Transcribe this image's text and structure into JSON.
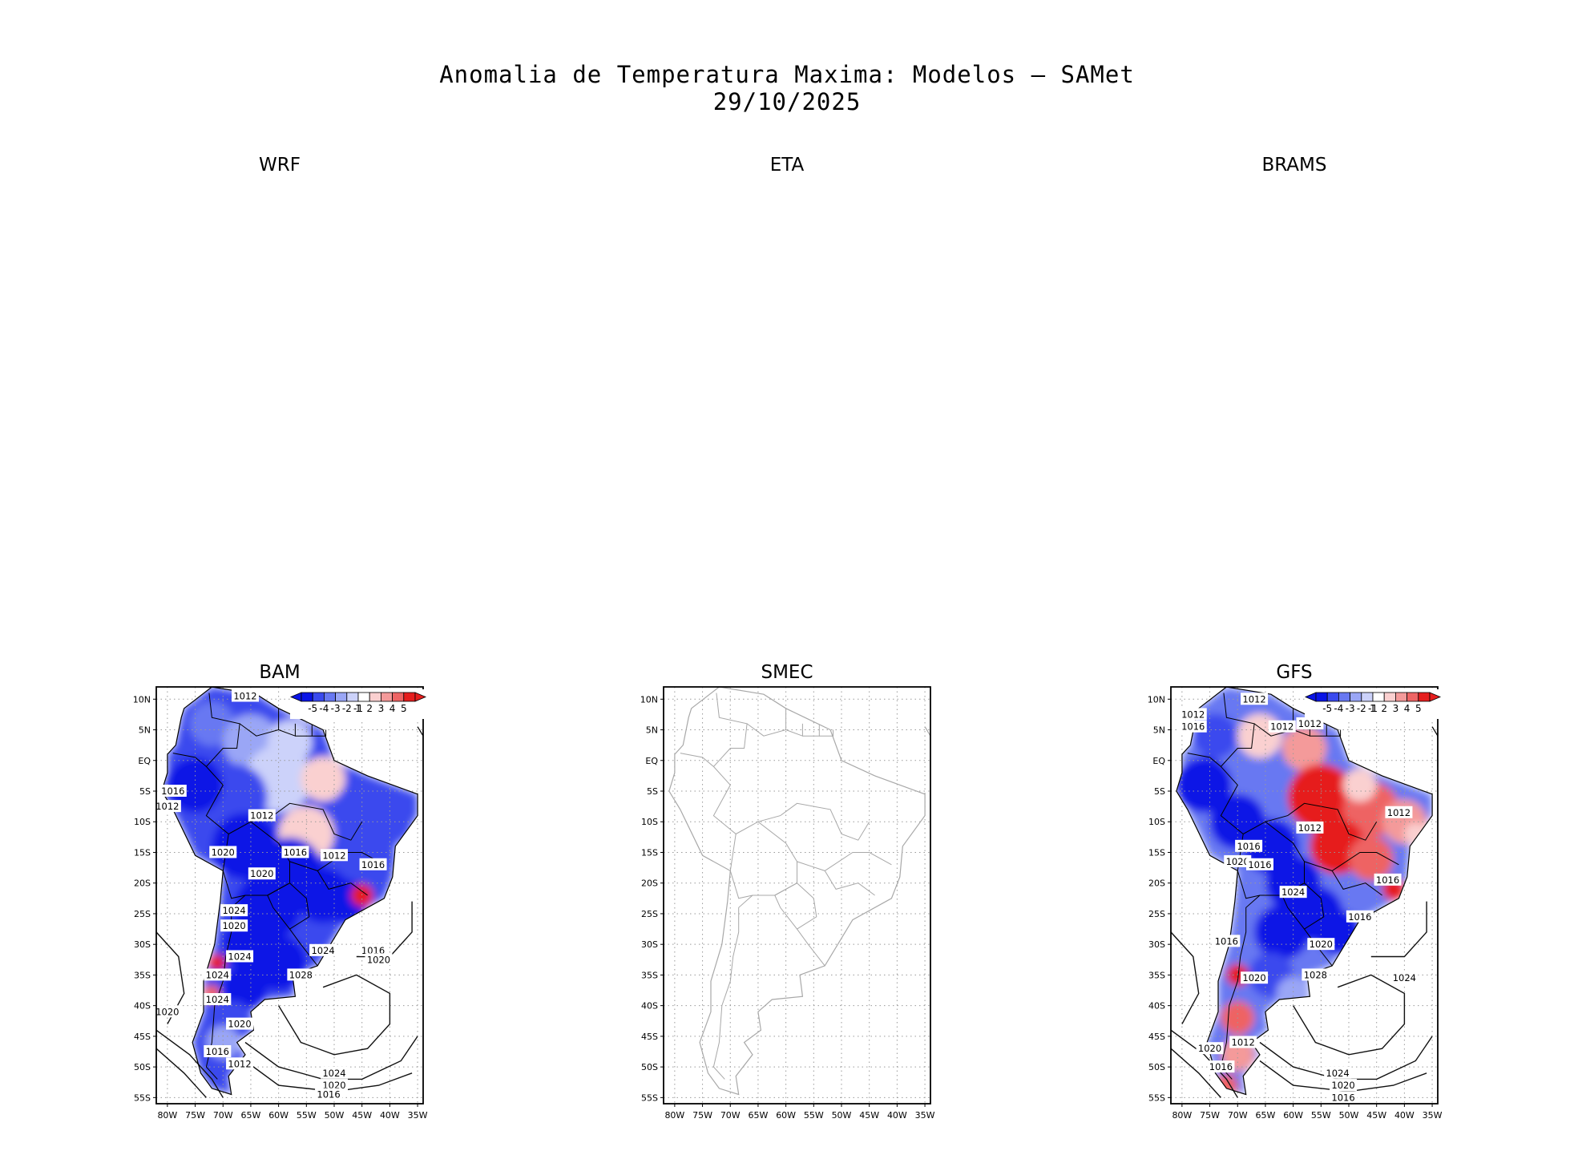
{
  "title": {
    "line1": "Anomalia de Temperatura Maxima: Modelos — SAMet",
    "line2": "29/10/2025"
  },
  "panels": [
    {
      "id": "wrf",
      "label": "WRF",
      "has_map": false
    },
    {
      "id": "eta",
      "label": "ETA",
      "has_map": false
    },
    {
      "id": "brams",
      "label": "BRAMS",
      "has_map": false
    },
    {
      "id": "bam",
      "label": "BAM",
      "has_map": true,
      "shaded": true
    },
    {
      "id": "smec",
      "label": "SMEC",
      "has_map": true,
      "shaded": false
    },
    {
      "id": "gfs",
      "label": "GFS",
      "has_map": true,
      "shaded": true
    }
  ],
  "map": {
    "lat_ticks": [
      "10N",
      "5N",
      "EQ",
      "5S",
      "10S",
      "15S",
      "20S",
      "25S",
      "30S",
      "35S",
      "40S",
      "45S",
      "50S",
      "55S"
    ],
    "lon_ticks": [
      "80W",
      "75W",
      "70W",
      "65W",
      "60W",
      "55W",
      "50W",
      "45W",
      "40W",
      "35W"
    ],
    "lat_range": [
      -56,
      12
    ],
    "lon_range": [
      -82,
      -34
    ]
  },
  "colorbar": {
    "labels": [
      "-5",
      "-4",
      "-3",
      "-2",
      "-1",
      "1",
      "2",
      "3",
      "4",
      "5"
    ],
    "colors": [
      "#0a14e6",
      "#3a4aee",
      "#6878f2",
      "#9aa6f6",
      "#ccd2fa",
      "#ffffff",
      "#fad0d0",
      "#f49a9a",
      "#ee6464",
      "#e61e1e"
    ]
  },
  "contours": {
    "bam": [
      "1012",
      "1016",
      "1012",
      "1012",
      "1020",
      "1016",
      "1020",
      "1012",
      "1016",
      "1024",
      "1020",
      "1024",
      "1024",
      "1024",
      "1028",
      "1016",
      "1020",
      "1024",
      "1020",
      "1020",
      "1016",
      "1012",
      "1024",
      "1020",
      "1016"
    ],
    "gfs": [
      "1012",
      "1012",
      "1016",
      "1012",
      "1012",
      "1012",
      "1012",
      "1016",
      "1020",
      "1016",
      "1024",
      "1016",
      "1016",
      "1020",
      "1016",
      "1028",
      "1020",
      "1024",
      "1020",
      "1012",
      "1016",
      "1024",
      "1020",
      "1016"
    ]
  }
}
